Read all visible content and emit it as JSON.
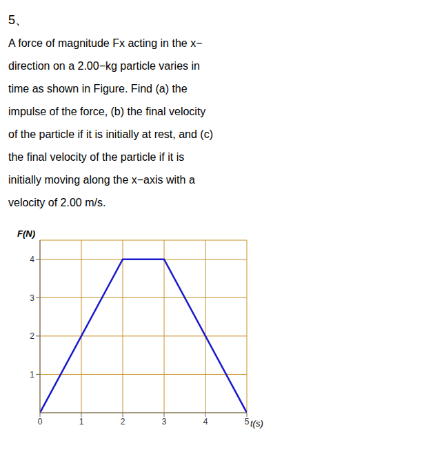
{
  "chart_data": {
    "type": "line",
    "title": "5、",
    "annotations": [
      "A force of magnitude Fx acting in the x−",
      "direction on a 2.00−kg particle varies in",
      "time as shown in Figure. Find (a) the",
      "impulse of the force, (b) the final velocity",
      "of the particle if it is initially at rest, and (c)",
      "the final velocity of the particle if it is",
      "initially moving along the x−axis with a",
      "velocity of 2.00 m/s."
    ],
    "x": [
      0,
      2,
      3,
      5
    ],
    "values": [
      0,
      4,
      4,
      0
    ],
    "color": "#1a1acc",
    "xlabel": "t(s)",
    "ylabel": "F(N)",
    "xlim": [
      0,
      5
    ],
    "ylim": [
      0,
      4.5
    ],
    "xticks": [
      0,
      1,
      2,
      3,
      4,
      5
    ],
    "yticks": [
      1,
      2,
      3,
      4
    ],
    "grid": true
  }
}
